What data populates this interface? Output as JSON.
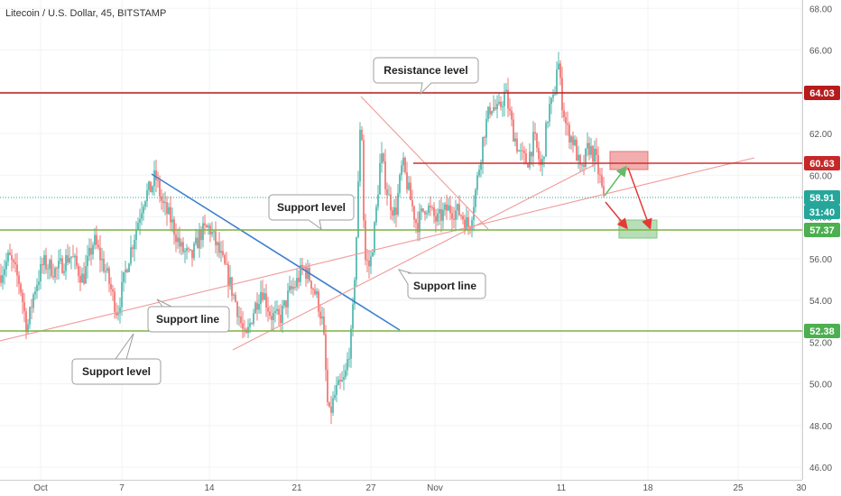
{
  "title": "Litecoin / U.S. Dollar, 45, BITSTAMP",
  "price_labels": [
    {
      "text": "64.03",
      "color": "#b71c1c"
    },
    {
      "text": "60.63",
      "color": "#c62828"
    },
    {
      "text": "58.91",
      "color": "#26a69a"
    },
    {
      "text": "31:40",
      "color": "#26a69a"
    },
    {
      "text": "57.37",
      "color": "#4caf50"
    },
    {
      "text": "52.38",
      "color": "#4caf50"
    }
  ],
  "annotations": [
    {
      "text": "Resistance level"
    },
    {
      "text": "Support level"
    },
    {
      "text": "Support line"
    },
    {
      "text": "Support line"
    },
    {
      "text": "Support level"
    }
  ],
  "colors": {
    "up": "#26a69a",
    "down": "#ef5350",
    "resistance": "#b71c1c",
    "support": "#4caf50",
    "trend_blue": "#3f7fd0",
    "trend_pink": "#ef9a9a"
  },
  "chart_data": {
    "type": "candlestick",
    "title": "Litecoin / U.S. Dollar, 45, BITSTAMP",
    "y_ticks": [
      "68.00",
      "66.00",
      "64.00",
      "62.00",
      "60.00",
      "58.00",
      "56.00",
      "54.00",
      "52.00",
      "50.00",
      "48.00",
      "46.00"
    ],
    "ylim": [
      45.4,
      68.4
    ],
    "x_ticks": [
      "Oct",
      "7",
      "14",
      "21",
      "27",
      "Nov",
      "11",
      "18",
      "25",
      "30"
    ],
    "levels": [
      {
        "name": "Resistance level",
        "value": 64.03
      },
      {
        "name": "",
        "value": 60.63
      },
      {
        "name": "",
        "value": 58.91
      },
      {
        "name": "Support level",
        "value": 57.37
      },
      {
        "name": "Support level",
        "value": 52.38
      }
    ],
    "close_path": [
      [
        0,
        55.2
      ],
      [
        10,
        56.1
      ],
      [
        22,
        54.8
      ],
      [
        30,
        52.6
      ],
      [
        38,
        54.5
      ],
      [
        48,
        55.8
      ],
      [
        62,
        55.4
      ],
      [
        78,
        56.2
      ],
      [
        92,
        55.0
      ],
      [
        104,
        56.9
      ],
      [
        118,
        55.3
      ],
      [
        130,
        53.4
      ],
      [
        140,
        55.6
      ],
      [
        150,
        57.3
      ],
      [
        160,
        59.0
      ],
      [
        168,
        59.4
      ],
      [
        172,
        60.0
      ],
      [
        180,
        58.6
      ],
      [
        190,
        57.8
      ],
      [
        200,
        56.5
      ],
      [
        212,
        56.0
      ],
      [
        222,
        57.2
      ],
      [
        232,
        57.5
      ],
      [
        242,
        56.4
      ],
      [
        252,
        55.2
      ],
      [
        262,
        53.8
      ],
      [
        272,
        52.0
      ],
      [
        280,
        53.4
      ],
      [
        290,
        54.6
      ],
      [
        300,
        53.3
      ],
      [
        310,
        53.1
      ],
      [
        320,
        54.3
      ],
      [
        328,
        54.8
      ],
      [
        336,
        55.6
      ],
      [
        344,
        55.0
      ],
      [
        352,
        54.0
      ],
      [
        358,
        52.8
      ],
      [
        364,
        48.3
      ],
      [
        372,
        49.6
      ],
      [
        382,
        50.2
      ],
      [
        390,
        52.5
      ],
      [
        396,
        58.0
      ],
      [
        400,
        63.8
      ],
      [
        404,
        56.0
      ],
      [
        410,
        55.6
      ],
      [
        416,
        57.8
      ],
      [
        422,
        61.0
      ],
      [
        430,
        59.0
      ],
      [
        438,
        58.1
      ],
      [
        446,
        60.6
      ],
      [
        454,
        59.0
      ],
      [
        462,
        57.6
      ],
      [
        472,
        58.6
      ],
      [
        484,
        57.8
      ],
      [
        496,
        58.4
      ],
      [
        510,
        58.2
      ],
      [
        520,
        57.5
      ],
      [
        528,
        59.5
      ],
      [
        536,
        62.0
      ],
      [
        544,
        63.4
      ],
      [
        552,
        63.0
      ],
      [
        560,
        64.0
      ],
      [
        568,
        62.2
      ],
      [
        576,
        61.0
      ],
      [
        584,
        60.6
      ],
      [
        592,
        61.8
      ],
      [
        600,
        60.2
      ],
      [
        608,
        63.2
      ],
      [
        614,
        63.6
      ],
      [
        618,
        65.8
      ],
      [
        622,
        63.8
      ],
      [
        628,
        62.2
      ],
      [
        636,
        61.6
      ],
      [
        644,
        60.0
      ],
      [
        652,
        61.4
      ],
      [
        660,
        60.8
      ],
      [
        666,
        59.6
      ],
      [
        670,
        58.4
      ]
    ]
  }
}
